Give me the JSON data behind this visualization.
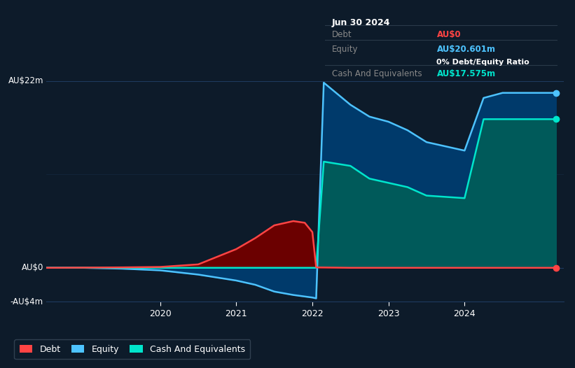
{
  "bg_color": "#0d1b2a",
  "plot_bg_color": "#0d1b2a",
  "grid_color": "#1e3a5f",
  "ylabel_top": "AU$22m",
  "ylabel_zero": "AU$0",
  "ylabel_bottom": "-AU$4m",
  "ylim": [
    -4,
    22
  ],
  "xlim_start": 2018.5,
  "xlim_end": 2025.3,
  "xticks": [
    2020,
    2021,
    2022,
    2023,
    2024
  ],
  "debt_color": "#ff4444",
  "equity_color": "#4dc3ff",
  "cash_color": "#00e5cc",
  "debt_fill_color": "#6b0000",
  "equity_fill_color": "#003a6b",
  "cash_fill_color": "#005a5a",
  "debt_x": [
    2018.5,
    2019.0,
    2019.5,
    2020.0,
    2020.5,
    2021.0,
    2021.25,
    2021.5,
    2021.75,
    2021.9,
    2022.0,
    2022.05,
    2022.5,
    2023.0,
    2023.5,
    2024.0,
    2024.5,
    2025.2
  ],
  "debt_y": [
    0.0,
    0.02,
    0.05,
    0.1,
    0.4,
    2.2,
    3.5,
    5.0,
    5.5,
    5.3,
    4.2,
    0.05,
    0.0,
    0.0,
    0.0,
    0.0,
    0.0,
    0.0
  ],
  "equity_x": [
    2018.5,
    2019.0,
    2019.5,
    2020.0,
    2020.5,
    2021.0,
    2021.25,
    2021.5,
    2021.75,
    2022.0,
    2022.05,
    2022.15,
    2022.5,
    2022.75,
    2023.0,
    2023.25,
    2023.5,
    2024.0,
    2024.25,
    2024.5,
    2025.2
  ],
  "equity_y": [
    0.0,
    0.0,
    -0.1,
    -0.3,
    -0.8,
    -1.5,
    -2.0,
    -2.8,
    -3.2,
    -3.5,
    -3.6,
    21.8,
    19.2,
    17.8,
    17.2,
    16.2,
    14.8,
    13.8,
    20.0,
    20.6,
    20.6
  ],
  "cash_x": [
    2018.5,
    2019.0,
    2019.5,
    2020.0,
    2020.5,
    2021.0,
    2021.25,
    2021.5,
    2021.75,
    2022.0,
    2022.05,
    2022.15,
    2022.5,
    2022.75,
    2023.0,
    2023.25,
    2023.5,
    2024.0,
    2024.25,
    2024.5,
    2025.2
  ],
  "cash_y": [
    0.0,
    0.0,
    0.0,
    0.0,
    0.0,
    0.0,
    0.0,
    0.0,
    0.0,
    0.0,
    0.0,
    12.5,
    12.0,
    10.5,
    10.0,
    9.5,
    8.5,
    8.2,
    17.5,
    17.5,
    17.5
  ],
  "tooltip_title": "Jun 30 2024",
  "tooltip_debt_label": "Debt",
  "tooltip_debt_value": "AU$0",
  "tooltip_equity_label": "Equity",
  "tooltip_equity_value": "AU$20.601m",
  "tooltip_ratio_value": "0% Debt/Equity Ratio",
  "tooltip_cash_label": "Cash And Equivalents",
  "tooltip_cash_value": "AU$17.575m",
  "legend_items": [
    "Debt",
    "Equity",
    "Cash And Equivalents"
  ],
  "legend_colors": [
    "#ff4444",
    "#4dc3ff",
    "#00e5cc"
  ]
}
